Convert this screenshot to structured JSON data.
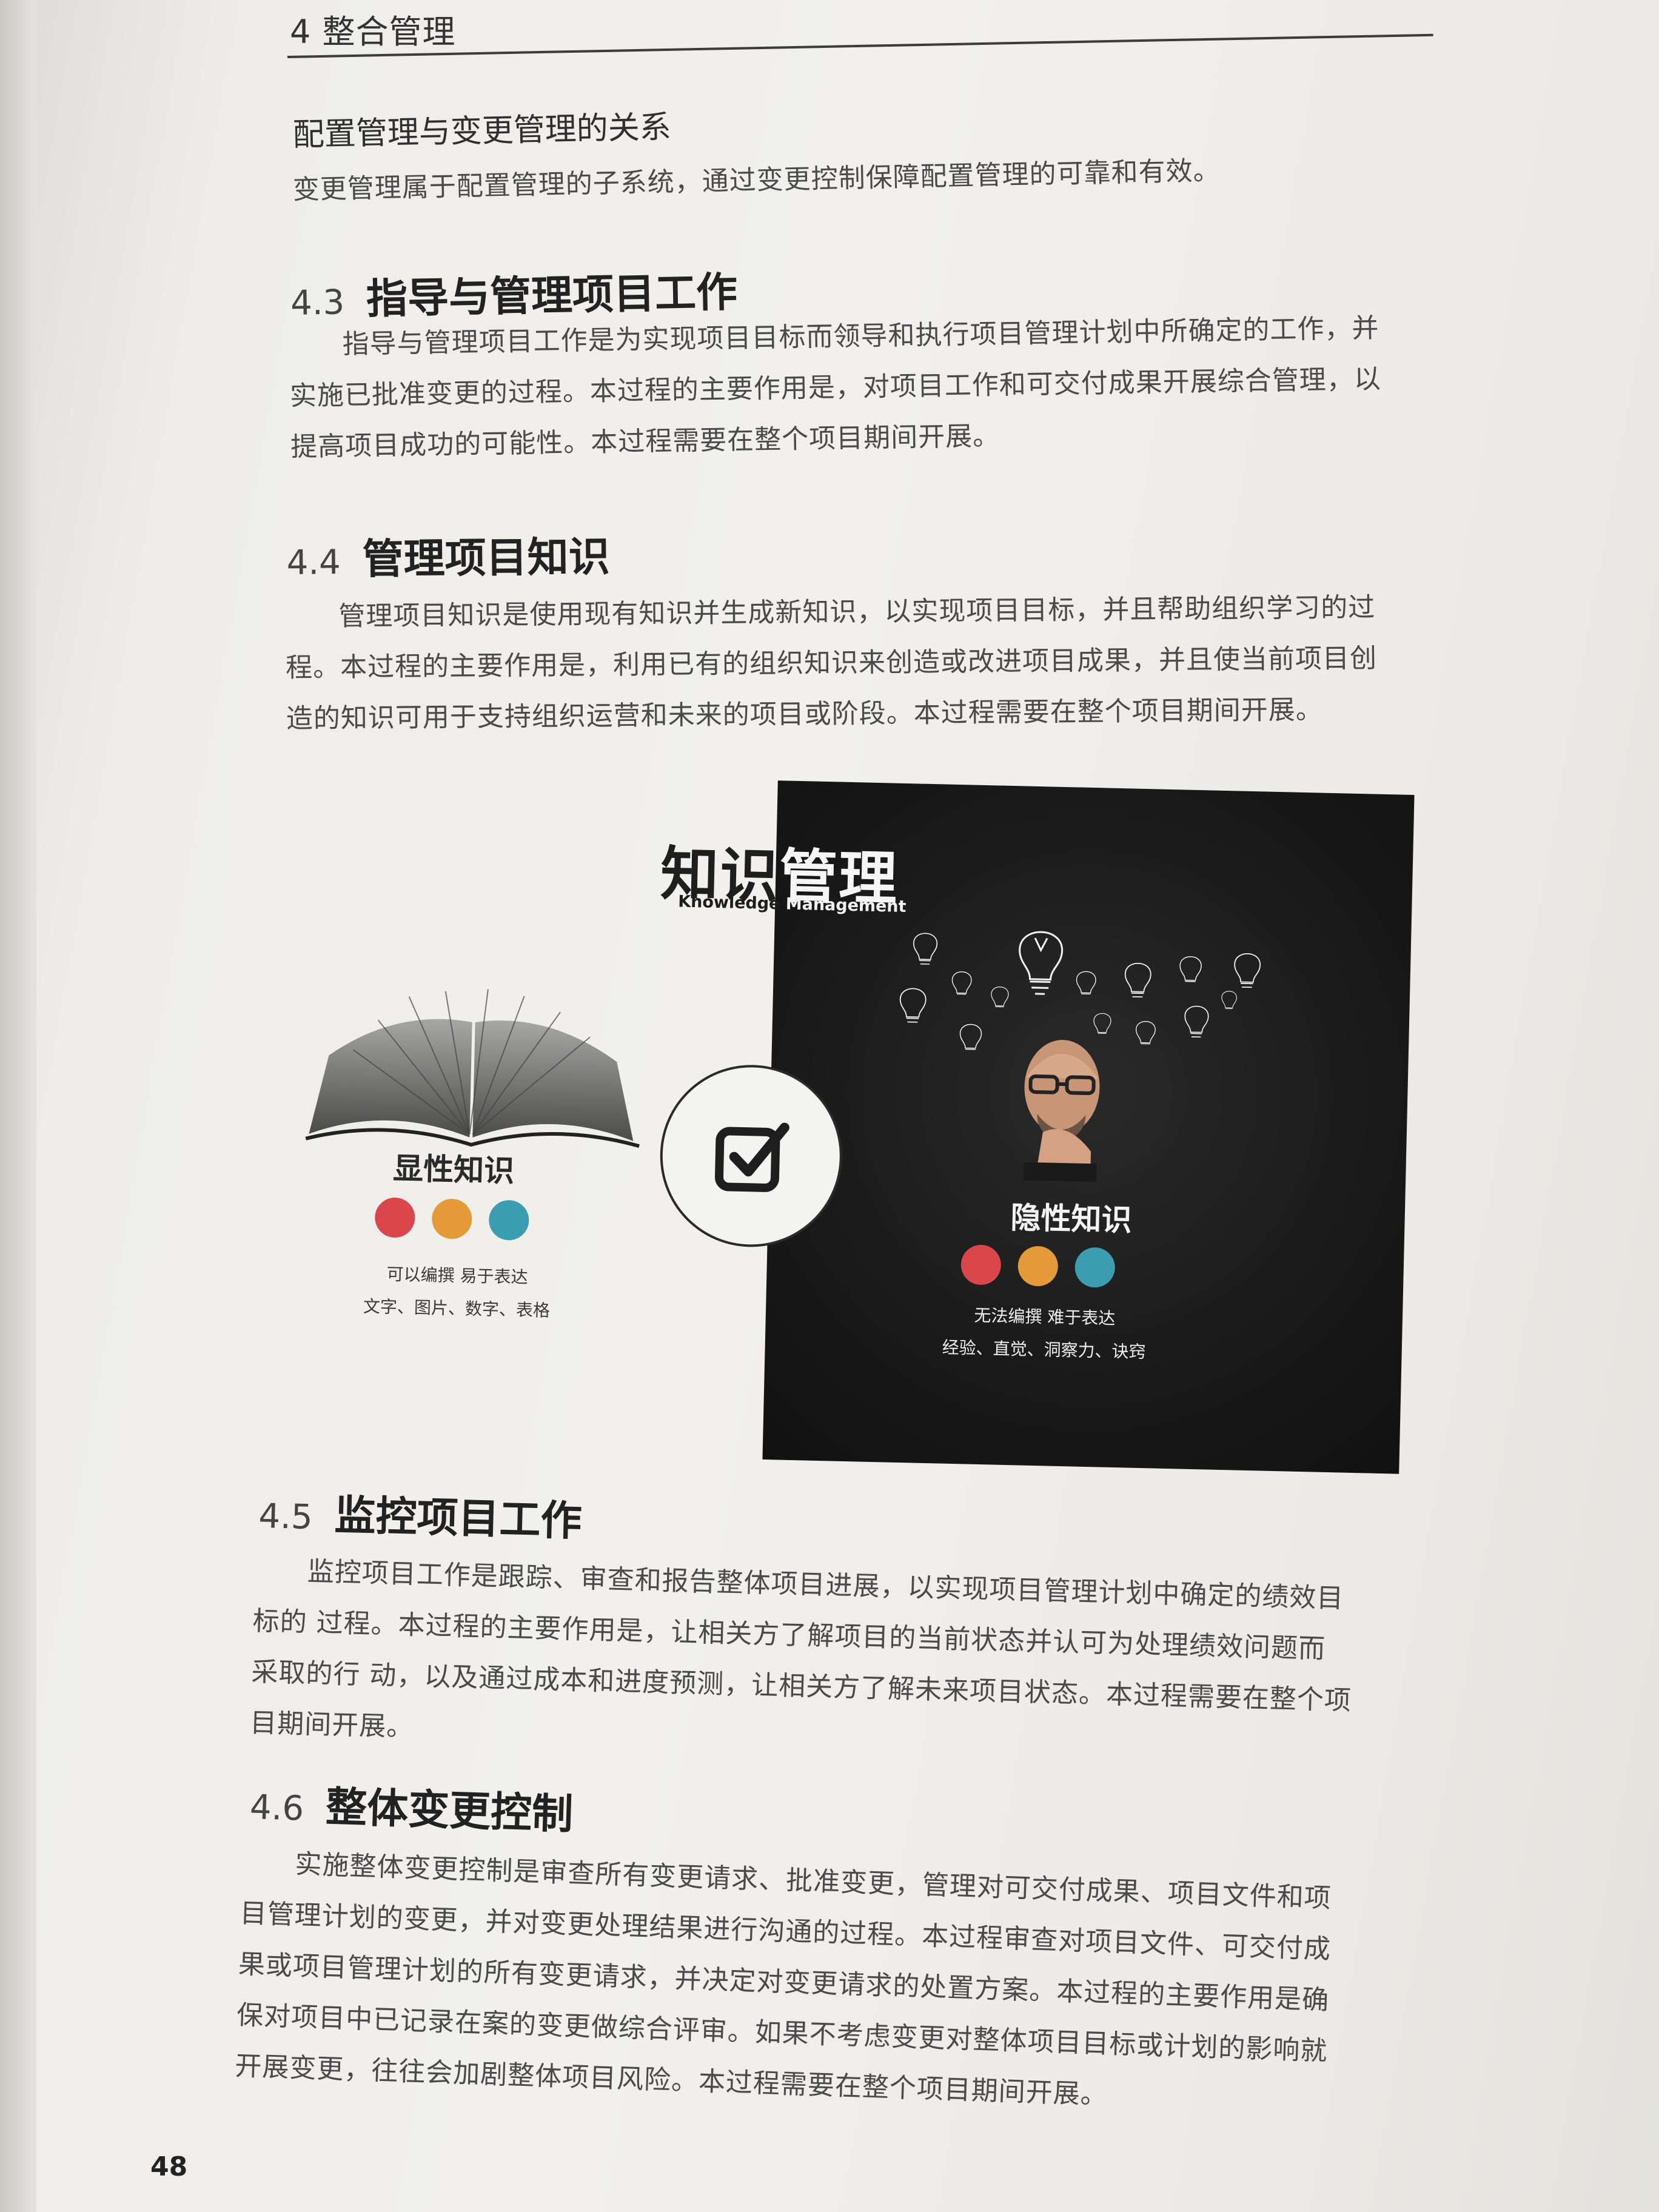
{
  "header": {
    "chapter": "4 整合管理"
  },
  "intro": {
    "subhead": "配置管理与变更管理的关系",
    "text": "变更管理属于配置管理的子系统，通过变更控制保障配置管理的可靠和有效。"
  },
  "sections": [
    {
      "num": "4.3",
      "title": "指导与管理项目工作",
      "lines": [
        "指导与管理项目工作是为实现项目目标而领导和执行项目管理计划中所确定的工作，并",
        "实施已批准变更的过程。本过程的主要作用是，对项目工作和可交付成果开展综合管理，以",
        "提高项目成功的可能性。本过程需要在整个项目期间开展。"
      ]
    },
    {
      "num": "4.4",
      "title": "管理项目知识",
      "lines": [
        "管理项目知识是使用现有知识并生成新知识，以实现项目目标，并且帮助组织学习的过",
        "程。本过程的主要作用是，利用已有的组织知识来创造或改进项目成果，并且使当前项目创",
        "造的知识可用于支持组织运营和未来的项目或阶段。本过程需要在整个项目期间开展。"
      ]
    },
    {
      "num": "4.5",
      "title": "监控项目工作",
      "lines": [
        "监控项目工作是跟踪、审查和报告整体项目进展，以实现项目管理计划中确定的绩效目",
        "标的 过程。本过程的主要作用是，让相关方了解项目的当前状态并认可为处理绩效问题而",
        "采取的行 动，以及通过成本和进度预测，让相关方了解未来项目状态。本过程需要在整个项",
        "目期间开展。"
      ]
    },
    {
      "num": "4.6",
      "title": "整体变更控制",
      "lines": [
        "实施整体变更控制是审查所有变更请求、批准变更，管理对可交付成果、项目文件和项",
        "目管理计划的变更，并对变更处理结果进行沟通的过程。本过程审查对项目文件、可交付成",
        "果或项目管理计划的所有变更请求，并决定对变更请求的处置方案。本过程的主要作用是确",
        "保对项目中已记录在案的变更做综合评审。如果不考虑变更对整体项目目标或计划的影响就",
        "开展变更，往往会加剧整体项目风险。本过程需要在整个项目期间开展。"
      ]
    }
  ],
  "figure": {
    "title_left": "知识",
    "title_right": "管理",
    "subtitle_left": "Knowledge ",
    "subtitle_right": "Management",
    "explicit": {
      "title": "显性知识",
      "line1": "可以编撰 易于表达",
      "line2": "文字、图片、数字、表格"
    },
    "tacit": {
      "title": "隐性知识",
      "line1": "无法编撰 难于表达",
      "line2": "经验、直觉、洞察力、诀窍"
    },
    "dot_colors": [
      "#d9474c",
      "#e59a3a",
      "#3c9cb0"
    ]
  },
  "page_number": "48"
}
